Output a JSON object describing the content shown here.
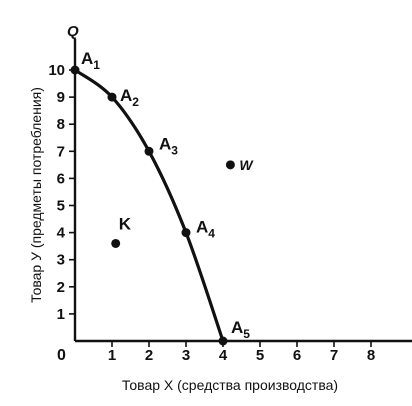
{
  "chart_data": {
    "type": "line",
    "x_axis": {
      "label": "Товар X (средства производства)",
      "ticks": [
        1,
        2,
        3,
        4,
        5,
        6,
        7,
        8
      ],
      "range": [
        0,
        8.7
      ]
    },
    "y_axis": {
      "label": "Товар У (предметы потребления)",
      "ticks": [
        1,
        2,
        3,
        4,
        5,
        6,
        7,
        8,
        9,
        10
      ],
      "range": [
        0,
        11.3
      ],
      "name": "Q"
    },
    "origin_label": "0",
    "grid": false,
    "series": [
      {
        "points": [
          {
            "label": "A",
            "sub": "1",
            "x": 0,
            "y": 10
          },
          {
            "label": "A",
            "sub": "2",
            "x": 1,
            "y": 9
          },
          {
            "label": "A",
            "sub": "3",
            "x": 2,
            "y": 7
          },
          {
            "label": "A",
            "sub": "4",
            "x": 3,
            "y": 4
          },
          {
            "label": "A",
            "sub": "5",
            "x": 4,
            "y": 0
          }
        ]
      }
    ],
    "extra_points": [
      {
        "label": "K",
        "x": 1.1,
        "y": 3.6
      },
      {
        "label": "W",
        "x": 4.2,
        "y": 6.5
      }
    ]
  }
}
